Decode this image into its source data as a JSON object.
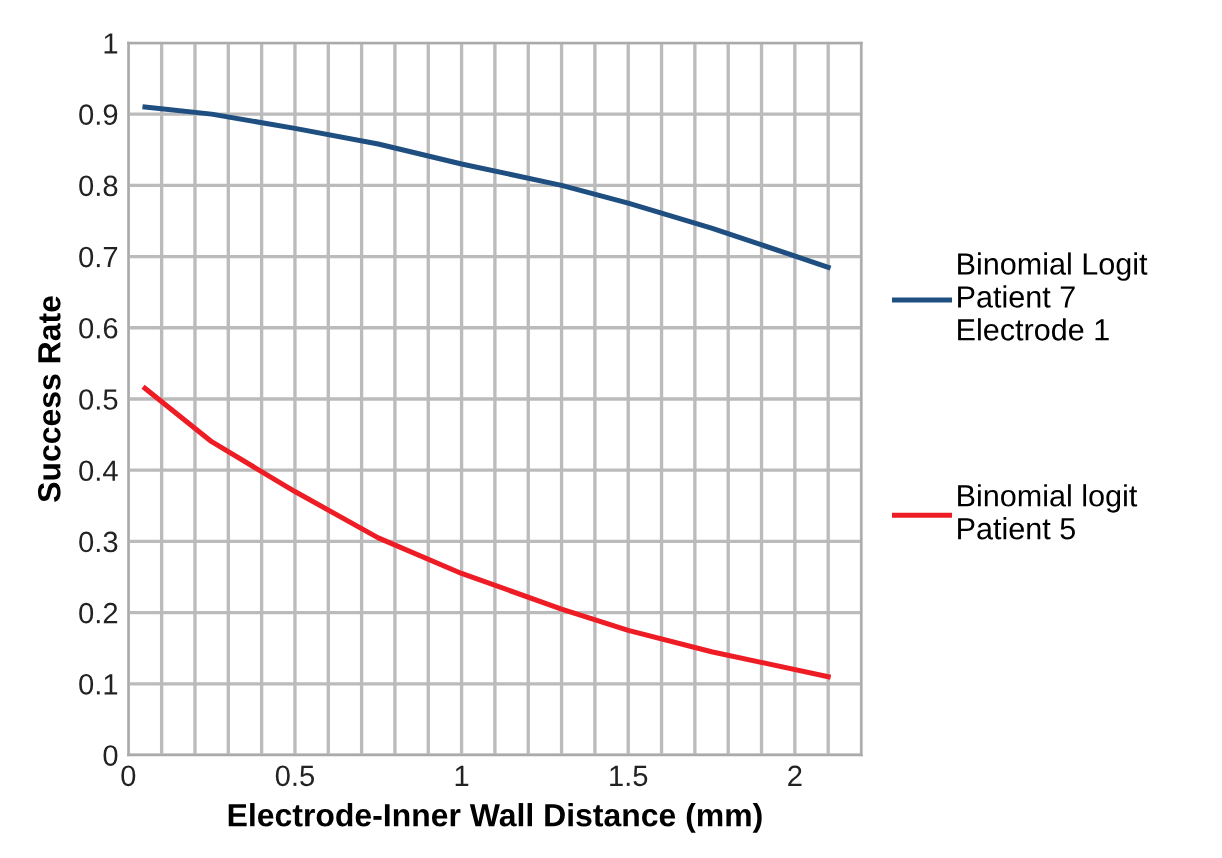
{
  "chart_data": {
    "type": "line",
    "xlabel": "Electrode-Inner Wall Distance (mm)",
    "ylabel": "Success Rate",
    "xlim": [
      0,
      2.2
    ],
    "ylim": [
      0,
      1
    ],
    "xticks": [
      0,
      {
        "value": 0.1,
        "label": null
      },
      {
        "value": 0.2,
        "label": null
      },
      {
        "value": 0.3,
        "label": null
      },
      {
        "value": 0.4,
        "label": null
      },
      0.5,
      {
        "value": 0.6,
        "label": null
      },
      {
        "value": 0.7,
        "label": null
      },
      {
        "value": 0.8,
        "label": null
      },
      {
        "value": 0.9,
        "label": null
      },
      1,
      {
        "value": 1.1,
        "label": null
      },
      {
        "value": 1.2,
        "label": null
      },
      {
        "value": 1.3,
        "label": null
      },
      {
        "value": 1.4,
        "label": null
      },
      1.5,
      {
        "value": 1.6,
        "label": null
      },
      {
        "value": 1.7,
        "label": null
      },
      {
        "value": 1.8,
        "label": null
      },
      {
        "value": 1.9,
        "label": null
      },
      2,
      {
        "value": 2.1,
        "label": null
      },
      {
        "value": 2.2,
        "label": null
      }
    ],
    "yticks": [
      0,
      0.1,
      0.2,
      0.3,
      0.4,
      0.5,
      0.6,
      0.7,
      0.8,
      0.9,
      1
    ],
    "grid": true,
    "legend": "right",
    "marker": "none",
    "line_style": "solid",
    "series": [
      {
        "name": "Binomial Logit\nPatient 7\nElectrode 1",
        "color": "#1f4e80",
        "x": [
          0.05,
          0.25,
          0.5,
          0.75,
          1.0,
          1.3,
          1.5,
          1.75,
          2.1
        ],
        "values": [
          0.91,
          0.9,
          0.88,
          0.858,
          0.83,
          0.8,
          0.775,
          0.74,
          0.685
        ]
      },
      {
        "name": "Binomial logit\nPatient 5",
        "color": "#ee1c24",
        "x": [
          0.05,
          0.25,
          0.5,
          0.75,
          1.0,
          1.3,
          1.5,
          1.75,
          2.1
        ],
        "values": [
          0.515,
          0.44,
          0.37,
          0.305,
          0.255,
          0.205,
          0.175,
          0.145,
          0.11
        ]
      }
    ]
  }
}
